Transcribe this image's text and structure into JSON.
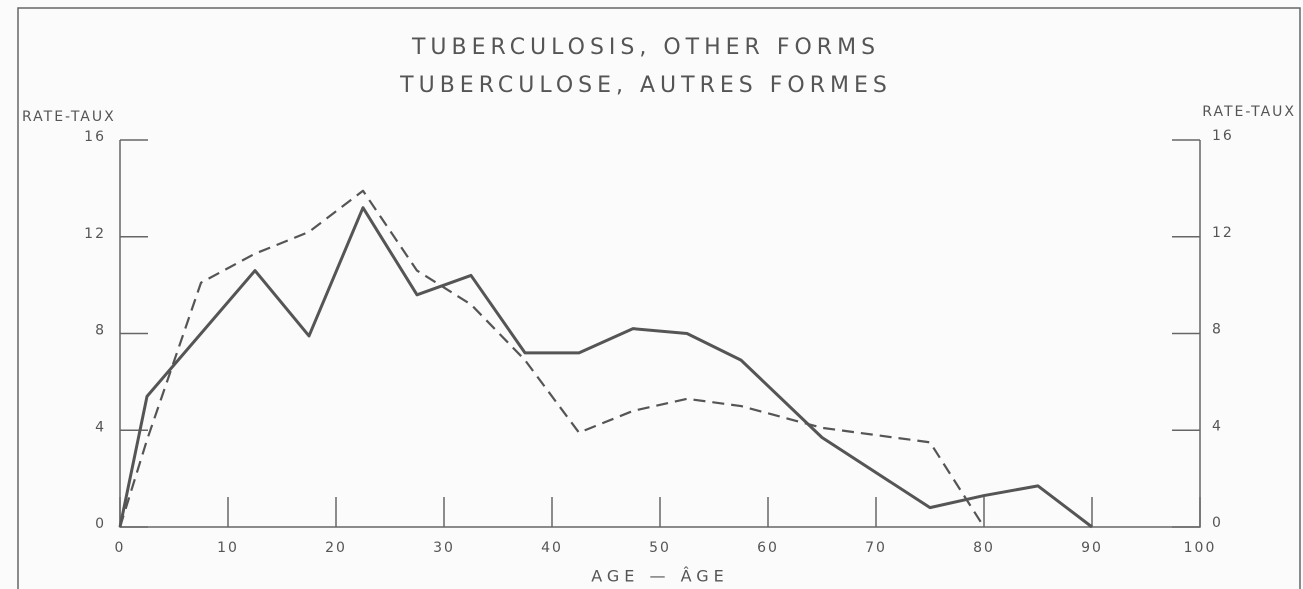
{
  "chart_data": {
    "type": "line",
    "title": [
      "TUBERCULOSIS, OTHER FORMS",
      "TUBERCULOSE, AUTRES FORMES"
    ],
    "ylabel": "RATE-TAUX",
    "y2label": "RATE-TAUX",
    "xlabel": "AGE — ÂGE",
    "x": [
      0,
      2.5,
      7.5,
      12.5,
      17.5,
      22.5,
      27.5,
      32.5,
      37.5,
      42.5,
      47.5,
      52.5,
      57.5,
      65,
      75,
      80,
      85,
      90
    ],
    "series": [
      {
        "color": "#555555",
        "dashed": false,
        "values": [
          0,
          5.4,
          8.0,
          10.6,
          7.9,
          13.2,
          9.6,
          10.4,
          7.2,
          7.2,
          8.2,
          8.0,
          6.9,
          3.7,
          0.8,
          1.3,
          1.7,
          0
        ]
      },
      {
        "color": "#555555",
        "dashed": true,
        "values": [
          0,
          3.6,
          10.1,
          11.3,
          12.2,
          13.9,
          10.6,
          9.2,
          6.9,
          3.9,
          4.8,
          5.3,
          5.0,
          4.1,
          3.5,
          0,
          null,
          null
        ]
      }
    ],
    "xlim": [
      0,
      100
    ],
    "xticks": [
      0,
      10,
      20,
      30,
      40,
      50,
      60,
      70,
      80,
      90,
      100
    ],
    "ylim": [
      0,
      16
    ],
    "yticks": [
      0,
      4,
      8,
      12,
      16
    ],
    "y2lim": [
      0,
      16
    ],
    "y2ticks": [
      0,
      4,
      8,
      12,
      16
    ]
  }
}
